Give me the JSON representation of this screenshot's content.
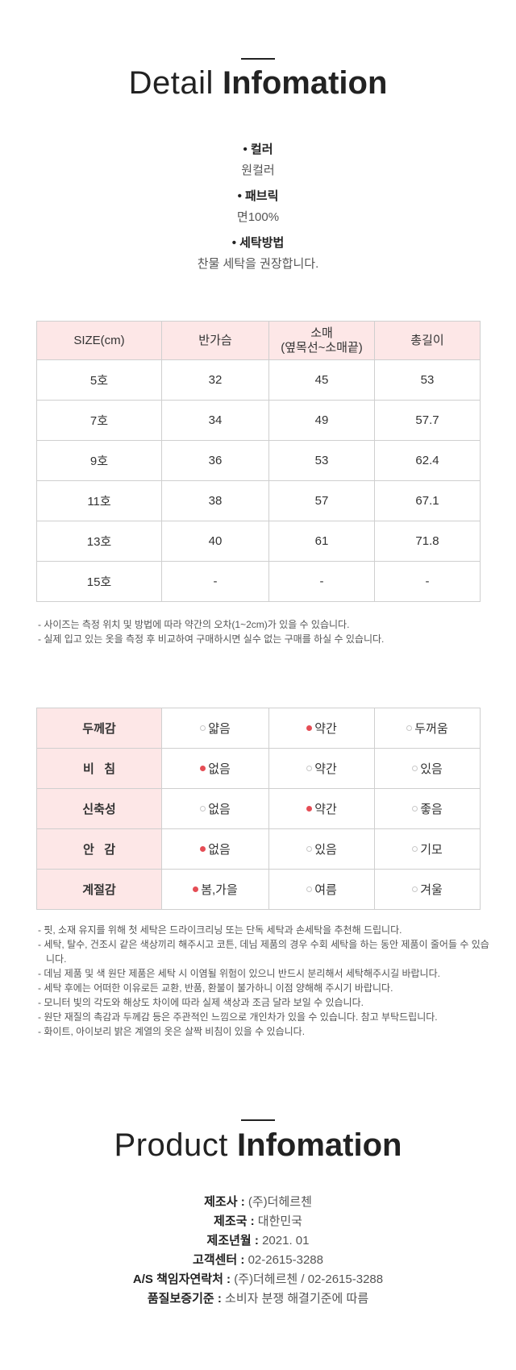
{
  "detail": {
    "title_light": "Detail",
    "title_bold": "Infomation",
    "specs": [
      {
        "label": "• 컬러",
        "value": "원컬러"
      },
      {
        "label": "• 패브릭",
        "value": "면100%"
      },
      {
        "label": "• 세탁방법",
        "value": "찬물 세탁을 권장합니다."
      }
    ]
  },
  "size_table": {
    "headers": [
      "SIZE(cm)",
      "반가슴",
      "소매\n(옆목선~소매끝)",
      "총길이"
    ],
    "rows": [
      [
        "5호",
        "32",
        "45",
        "53"
      ],
      [
        "7호",
        "34",
        "49",
        "57.7"
      ],
      [
        "9호",
        "36",
        "53",
        "62.4"
      ],
      [
        "11호",
        "38",
        "57",
        "67.1"
      ],
      [
        "13호",
        "40",
        "61",
        "71.8"
      ],
      [
        "15호",
        "-",
        "-",
        "-"
      ]
    ]
  },
  "size_notes": [
    "- 사이즈는 측정 위치 및 방법에 따라 약간의 오차(1~2cm)가 있을 수 있습니다.",
    "- 실제 입고 있는 옷을 측정 후 비교하여 구매하시면 실수 없는 구매를 하실 수 있습니다."
  ],
  "feel_table": {
    "rows": [
      {
        "label": "두께감",
        "options": [
          {
            "text": "얇음",
            "selected": false
          },
          {
            "text": "약간",
            "selected": true
          },
          {
            "text": "두꺼움",
            "selected": false
          }
        ]
      },
      {
        "label": "비   침",
        "options": [
          {
            "text": "없음",
            "selected": true
          },
          {
            "text": "약간",
            "selected": false
          },
          {
            "text": "있음",
            "selected": false
          }
        ]
      },
      {
        "label": "신축성",
        "options": [
          {
            "text": "없음",
            "selected": false
          },
          {
            "text": "약간",
            "selected": true
          },
          {
            "text": "좋음",
            "selected": false
          }
        ]
      },
      {
        "label": "안   감",
        "options": [
          {
            "text": "없음",
            "selected": true
          },
          {
            "text": "있음",
            "selected": false
          },
          {
            "text": "기모",
            "selected": false
          }
        ]
      },
      {
        "label": "계절감",
        "options": [
          {
            "text": "봄,가을",
            "selected": true
          },
          {
            "text": "여름",
            "selected": false
          },
          {
            "text": "겨울",
            "selected": false
          }
        ]
      }
    ],
    "selected_color": "#e54d55"
  },
  "care_notes": [
    "- 핏, 소재 유지를 위해 첫 세탁은 드라이크리닝 또는 단독 세탁과 손세탁을 추천해 드립니다.",
    "- 세탁, 탈수, 건조시 같은 색상끼리 해주시고 코튼, 데님 제품의 경우 수회 세탁을 하는 동안 제품이 줄어들 수 있습니다.",
    "- 데님 제품 및 색 원단 제품은 세탁 시 이염될 위험이 있으니 반드시 분리해서 세탁해주시길 바랍니다.",
    "- 세탁 후에는 어떠한 이유로든 교환, 반품, 환불이 불가하니 이점 양해해 주시기 바랍니다.",
    "- 모니터 빛의 각도와 해상도 차이에 따라 실제 색상과 조금 달라 보일 수 있습니다.",
    "- 원단 재질의 촉감과 두께감 등은 주관적인 느낌으로 개인차가 있을 수 있습니다. 참고 부탁드립니다.",
    "- 화이트, 아이보리 밝은 계열의 옷은 살짝 비침이 있을 수 있습니다."
  ],
  "product": {
    "title_light": "Product",
    "title_bold": "Infomation",
    "items": [
      {
        "key": "제조사 :",
        "value": "(주)더헤르첸"
      },
      {
        "key": "제조국 :",
        "value": "대한민국"
      },
      {
        "key": "제조년월 :",
        "value": "2021. 01"
      },
      {
        "key": "고객센터 :",
        "value": "02-2615-3288"
      },
      {
        "key": "A/S 책임자연락처 :",
        "value": "(주)더헤르첸 / 02-2615-3288"
      },
      {
        "key": "품질보증기준 :",
        "value": "소비자 분쟁 해결기준에 따름"
      }
    ]
  }
}
